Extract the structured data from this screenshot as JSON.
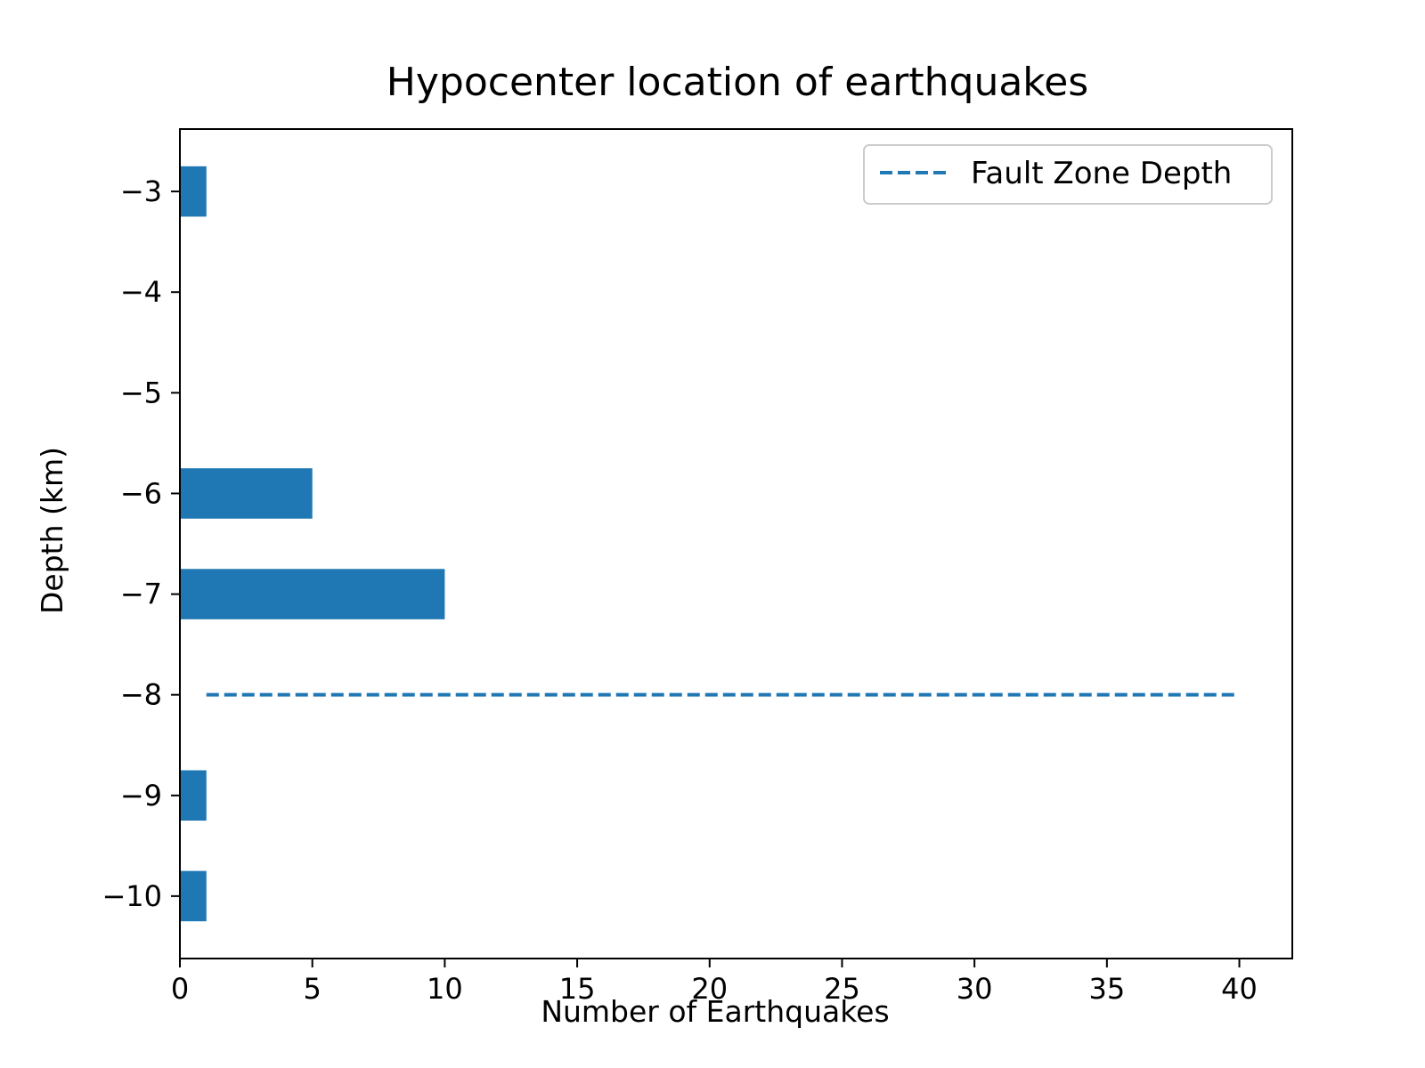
{
  "chart_data": {
    "type": "bar",
    "orientation": "horizontal",
    "title": "Hypocenter location of earthquakes",
    "xlabel": "Number of Earthquakes",
    "ylabel": "Depth (km)",
    "xlim": [
      0,
      42
    ],
    "ylim": [
      -10.62,
      -2.38
    ],
    "x_ticks": [
      0,
      5,
      10,
      15,
      20,
      25,
      30,
      35,
      40
    ],
    "x_tick_labels": [
      "0",
      "5",
      "10",
      "15",
      "20",
      "25",
      "30",
      "35",
      "40"
    ],
    "y_ticks": [
      -3,
      -4,
      -5,
      -6,
      -7,
      -8,
      -9,
      -10
    ],
    "y_tick_labels": [
      "−3",
      "−4",
      "−5",
      "−6",
      "−7",
      "−8",
      "−9",
      "−10"
    ],
    "bar_height": 0.5,
    "bar_color": "#1f77b4",
    "bars": [
      {
        "depth": -3,
        "count": 1
      },
      {
        "depth": -6,
        "count": 5
      },
      {
        "depth": -7,
        "count": 10
      },
      {
        "depth": -9,
        "count": 1
      },
      {
        "depth": -10,
        "count": 1
      }
    ],
    "lines": [
      {
        "name": "Fault Zone Depth",
        "style": "dashed",
        "color": "#1f77b4",
        "x": [
          1,
          40
        ],
        "y": [
          -8,
          -8
        ]
      }
    ],
    "legend": {
      "position": "top-right",
      "entries": [
        "Fault Zone Depth"
      ]
    },
    "grid": false
  }
}
